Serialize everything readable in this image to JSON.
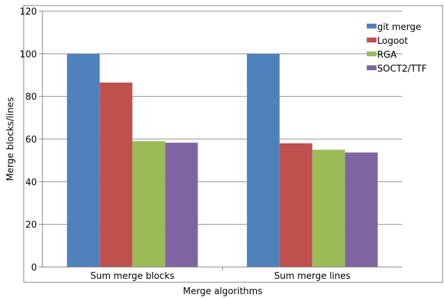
{
  "chart_data": {
    "type": "bar",
    "title": "",
    "xlabel": "Merge algorithms",
    "ylabel": "Merge blocks/lines",
    "categories": [
      "Sum merge blocks",
      "Sum merge lines"
    ],
    "series": [
      {
        "name": "git merge",
        "color": "#4f81bd",
        "values": [
          100,
          100
        ]
      },
      {
        "name": "Logoot",
        "color": "#c0504d",
        "values": [
          86.5,
          58
        ]
      },
      {
        "name": "RGA",
        "color": "#9bbb59",
        "values": [
          59,
          55
        ]
      },
      {
        "name": "SOCT2/TTF",
        "color": "#8064a2",
        "values": [
          58.3,
          53.7
        ]
      }
    ],
    "ylim": [
      0,
      120
    ],
    "yticks": [
      "0",
      "20",
      "40",
      "60",
      "80",
      "100",
      "120"
    ],
    "grid": true,
    "legend": "top-right"
  }
}
